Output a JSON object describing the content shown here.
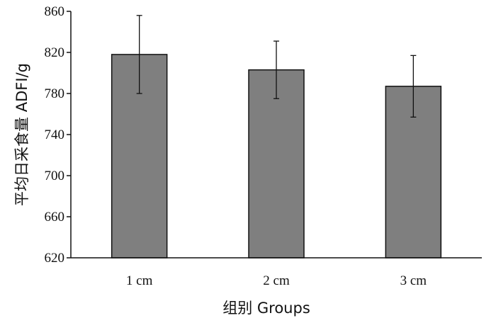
{
  "colors": {
    "bar_fill": "#7f7f7f",
    "bar_stroke": "#111111",
    "axis": "#111111"
  },
  "chart_data": {
    "type": "bar",
    "title": "",
    "xlabel": "组别  Groups",
    "ylabel": "平均日采食量  ADFI/g",
    "categories": [
      "1 cm",
      "2 cm",
      "3 cm"
    ],
    "values": [
      818,
      803,
      787
    ],
    "error": [
      38,
      28,
      30
    ],
    "ylim": [
      620,
      860
    ],
    "yticks": [
      620,
      660,
      700,
      740,
      780,
      820,
      860
    ],
    "grid": false,
    "legend": "none"
  }
}
